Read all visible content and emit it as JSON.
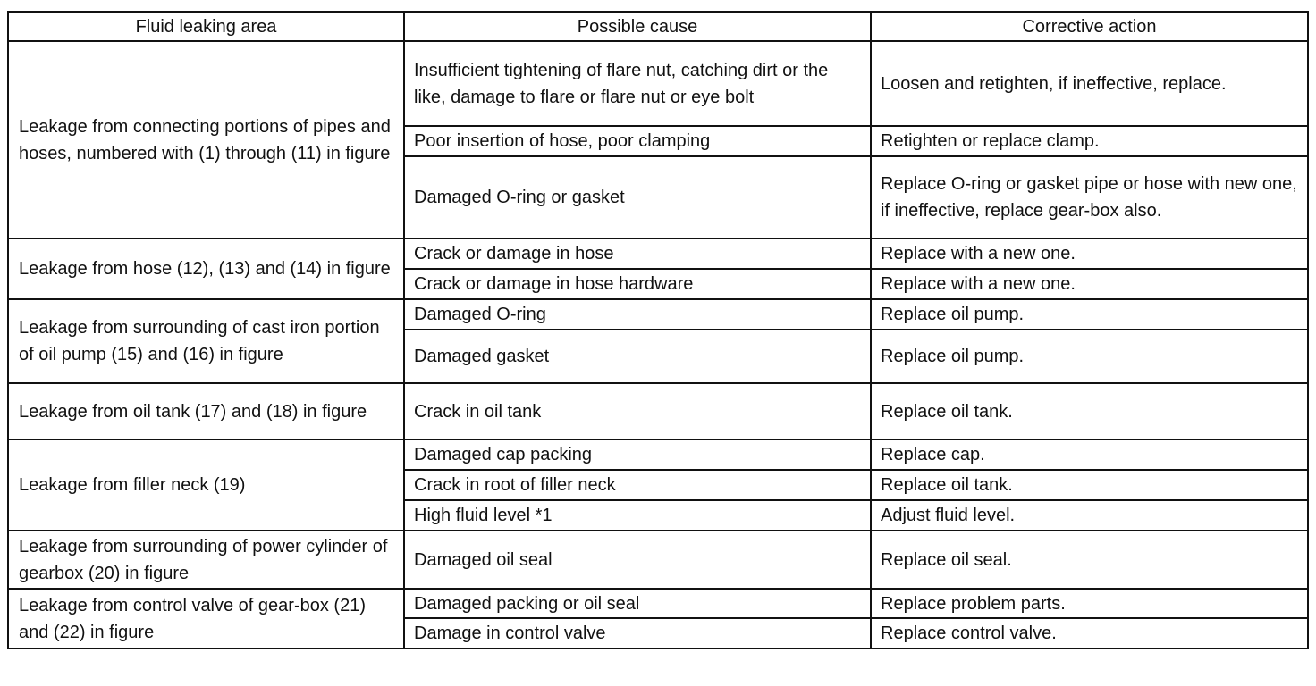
{
  "table": {
    "header": [
      "Fluid leaking area",
      "Possible cause",
      "Corrective action"
    ],
    "groups": [
      {
        "area": "Leakage from connecting portions of pipes and hoses, numbered with (1) through (11) in figure",
        "rows": [
          {
            "cause": "Insufficient tightening of flare nut, catching dirt or the like, damage to flare or flare nut or eye bolt",
            "action": "Loosen and retighten, if ineffective, replace."
          },
          {
            "cause": "Poor insertion of hose, poor clamping",
            "action": "Retighten or replace clamp."
          },
          {
            "cause": "Damaged O-ring or gasket",
            "action": "Replace O-ring or gasket pipe or hose with new one, if ineffective, replace gear-box also."
          }
        ]
      },
      {
        "area": "Leakage from hose (12), (13) and (14) in figure",
        "rows": [
          {
            "cause": "Crack or damage in hose",
            "action": "Replace with a new one."
          },
          {
            "cause": "Crack or damage in hose hardware",
            "action": "Replace with a new one."
          }
        ]
      },
      {
        "area": "Leakage from surrounding of cast iron portion of oil pump (15) and (16) in figure",
        "rows": [
          {
            "cause": "Damaged O-ring",
            "action": "Replace oil pump."
          },
          {
            "cause": "Damaged gasket",
            "action": "Replace oil pump."
          }
        ]
      },
      {
        "area": "Leakage from oil tank (17) and (18) in figure",
        "rows": [
          {
            "cause": "Crack in oil tank",
            "action": "Replace oil tank."
          }
        ]
      },
      {
        "area": "Leakage from filler neck (19)",
        "rows": [
          {
            "cause": "Damaged cap packing",
            "action": "Replace cap."
          },
          {
            "cause": "Crack in root of filler neck",
            "action": "Replace oil tank."
          },
          {
            "cause": "High fluid level *1",
            "action": "Adjust fluid level."
          }
        ]
      },
      {
        "area": "Leakage from surrounding of power cylinder of gearbox (20) in figure",
        "rows": [
          {
            "cause": "Damaged oil seal",
            "action": "Replace oil seal."
          }
        ]
      },
      {
        "area": "Leakage from control valve of gear-box (21) and (22) in figure",
        "rows": [
          {
            "cause": "Damaged packing or oil seal",
            "action": "Replace problem parts."
          },
          {
            "cause": "Damage in control valve",
            "action": "Replace control valve."
          }
        ]
      }
    ]
  }
}
